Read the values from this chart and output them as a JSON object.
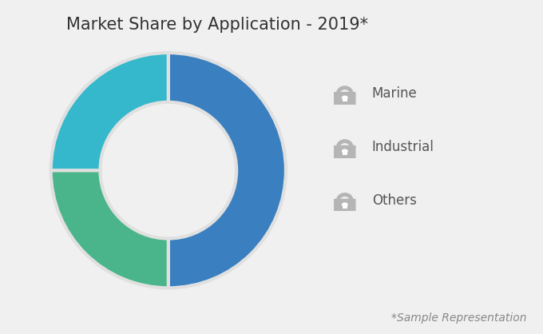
{
  "title": "Market Share by Application - 2019*",
  "footnote": "*Sample Representation",
  "labels": [
    "Marine",
    "Industrial",
    "Others"
  ],
  "values": [
    50,
    25,
    25
  ],
  "colors": [
    "#3a7fbf",
    "#4ab58a",
    "#35b8cc"
  ],
  "donut_width": 0.42,
  "background_color": "#f0f0f0",
  "title_fontsize": 15,
  "legend_fontsize": 12,
  "footnote_fontsize": 10,
  "wedge_linewidth": 3,
  "wedge_edgecolor": "#e0e0e0"
}
